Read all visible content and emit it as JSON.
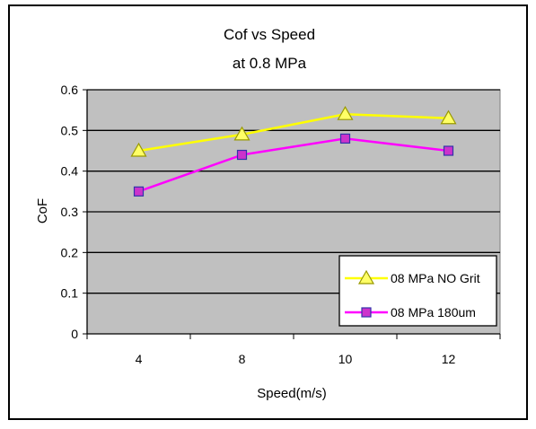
{
  "chart_data": {
    "type": "line",
    "title": "Cof vs Speed",
    "subtitle": "at 0.8 MPa",
    "xlabel": "Speed(m/s)",
    "ylabel": "CoF",
    "categories": [
      "4",
      "8",
      "10",
      "12"
    ],
    "ylim": [
      0,
      0.6
    ],
    "yticks": [
      "0",
      "0.1",
      "0.2",
      "0.3",
      "0.4",
      "0.5",
      "0.6"
    ],
    "grid": "horizontal",
    "legend_position": "bottom-right",
    "plot_background": "#c0c0c0",
    "series": [
      {
        "name": "08 MPa NO Grit",
        "values": [
          0.45,
          0.49,
          0.54,
          0.53
        ],
        "color": "#ffff00",
        "marker": "triangle",
        "marker_fill": "#ffff66",
        "marker_stroke": "#999900"
      },
      {
        "name": "08 MPa 180um",
        "values": [
          0.35,
          0.44,
          0.48,
          0.45
        ],
        "color": "#ff00ff",
        "marker": "square",
        "marker_fill": "#cc33cc",
        "marker_stroke": "#3333aa"
      }
    ]
  }
}
